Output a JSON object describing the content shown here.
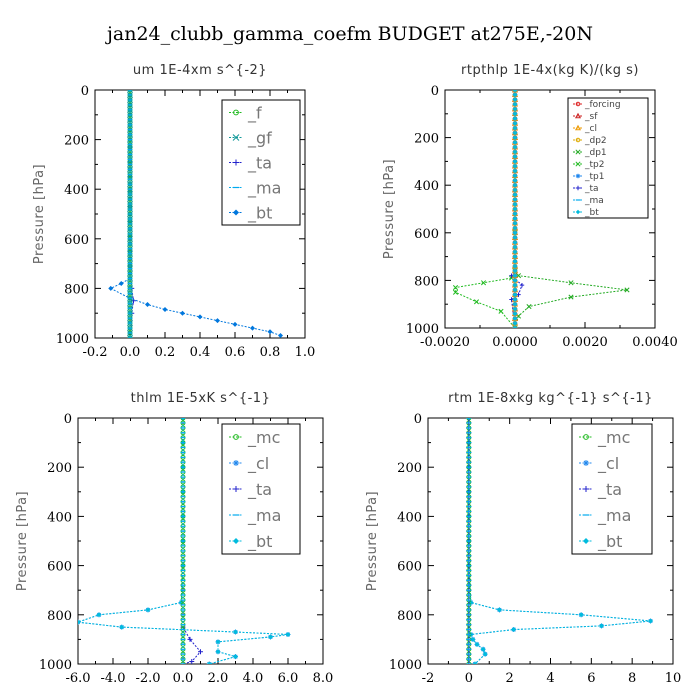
{
  "title": "jan24_clubb_gamma_coefm  BUDGET at275E,-20N",
  "chart_data": [
    {
      "type": "line",
      "title": "um   1E-4xm s^{-2}",
      "ylabel": "Pressure [hPa]",
      "xlim": [
        -0.2,
        1.0
      ],
      "ylim": [
        1000,
        0
      ],
      "xticks": [
        "-0.2",
        "0.0",
        "0.2",
        "0.4",
        "0.6",
        "0.8",
        "1.0"
      ],
      "yticks": [
        "0",
        "200",
        "400",
        "600",
        "800",
        "1000"
      ],
      "legend_style": "large",
      "series": [
        {
          "name": "_f",
          "color": "#22bb22",
          "marker": "circle",
          "x": [
            0,
            0
          ],
          "y": [
            0,
            1000
          ]
        },
        {
          "name": "_gf",
          "color": "#119999",
          "marker": "cross",
          "x": [
            0,
            0
          ],
          "y": [
            0,
            1000
          ]
        },
        {
          "name": "_ta",
          "color": "#2222cc",
          "marker": "plus",
          "x": [
            0,
            0,
            0,
            0,
            0,
            0,
            0,
            0,
            0,
            0.01,
            0.02,
            0.01,
            0.0
          ],
          "y": [
            0,
            100,
            200,
            300,
            400,
            500,
            600,
            700,
            760,
            800,
            850,
            900,
            1000
          ]
        },
        {
          "name": "_ma",
          "color": "#00aaee",
          "marker": "dash",
          "x": [
            0,
            0
          ],
          "y": [
            0,
            1000
          ]
        },
        {
          "name": "_bt",
          "color": "#0077dd",
          "marker": "diamond",
          "x": [
            0,
            0,
            0,
            0,
            0,
            0,
            0,
            0,
            0,
            0,
            0,
            0,
            0,
            0,
            0,
            0,
            0,
            0,
            0,
            0,
            0,
            0,
            0,
            0,
            0,
            0,
            0,
            0,
            0,
            0,
            -0.05,
            -0.11,
            0.0,
            0.1,
            0.2,
            0.3,
            0.4,
            0.5,
            0.6,
            0.7,
            0.8,
            0.86
          ],
          "y": [
            0,
            20,
            40,
            60,
            80,
            100,
            120,
            140,
            160,
            180,
            200,
            230,
            260,
            290,
            320,
            350,
            380,
            410,
            440,
            470,
            500,
            530,
            560,
            590,
            620,
            650,
            680,
            710,
            740,
            760,
            780,
            800,
            840,
            865,
            885,
            900,
            915,
            930,
            945,
            960,
            975,
            990
          ]
        }
      ]
    },
    {
      "type": "line",
      "title": "rtpthlp   1E-4x(kg K)/(kg s)",
      "ylabel": "Pressure [hPa]",
      "xlim": [
        -0.002,
        0.004
      ],
      "ylim": [
        1000,
        0
      ],
      "xticks": [
        "-0.0020",
        "0.0000",
        "0.0020",
        "0.0040"
      ],
      "yticks": [
        "0",
        "200",
        "400",
        "600",
        "800",
        "1000"
      ],
      "legend_style": "small",
      "series": [
        {
          "name": "_forcing",
          "color": "#dd2222",
          "marker": "circle",
          "x": [
            0,
            0
          ],
          "y": [
            0,
            1000
          ]
        },
        {
          "name": "_sf",
          "color": "#cc2222",
          "marker": "tri",
          "x": [
            0,
            0
          ],
          "y": [
            0,
            1000
          ]
        },
        {
          "name": "_cl",
          "color": "#ee9900",
          "marker": "tri",
          "x": [
            0,
            0
          ],
          "y": [
            0,
            1000
          ]
        },
        {
          "name": "_dp2",
          "color": "#ddaa00",
          "marker": "circle",
          "x": [
            0,
            0
          ],
          "y": [
            0,
            1000
          ]
        },
        {
          "name": "_dp1",
          "color": "#22aa22",
          "marker": "cross",
          "x": [
            0,
            0,
            0,
            0.0001,
            0.0016,
            0.0032,
            0.0016,
            0.0004,
            0.0001,
            0
          ],
          "y": [
            0,
            600,
            760,
            780,
            810,
            840,
            870,
            910,
            950,
            1000
          ]
        },
        {
          "name": "_tp2",
          "color": "#22bb22",
          "marker": "cross",
          "x": [
            0,
            0,
            0,
            -0.0001,
            -0.0009,
            -0.0017,
            -0.0017,
            -0.0011,
            -0.0004,
            0
          ],
          "y": [
            0,
            600,
            760,
            790,
            810,
            830,
            850,
            890,
            930,
            1000
          ]
        },
        {
          "name": "_tp1",
          "color": "#2288ee",
          "marker": "star",
          "x": [
            0,
            0
          ],
          "y": [
            0,
            1000
          ]
        },
        {
          "name": "_ta",
          "color": "#2222cc",
          "marker": "plus",
          "x": [
            0,
            0,
            -0.0001,
            0.0002,
            0.0001,
            -0.0001,
            0
          ],
          "y": [
            0,
            760,
            780,
            820,
            860,
            880,
            1000
          ]
        },
        {
          "name": "_ma",
          "color": "#00aaee",
          "marker": "dash",
          "x": [
            0,
            0
          ],
          "y": [
            0,
            1000
          ]
        },
        {
          "name": "_bt",
          "color": "#00bbdd",
          "marker": "diamond",
          "x": [
            0,
            0
          ],
          "y": [
            0,
            1000
          ]
        }
      ]
    },
    {
      "type": "line",
      "title": "thlm   1E-5xK s^{-1}",
      "ylabel": "Pressure [hPa]",
      "xlim": [
        -6.0,
        8.0
      ],
      "ylim": [
        1000,
        0
      ],
      "xticks": [
        "-6.0",
        "-4.0",
        "-2.0",
        "0.0",
        "2.0",
        "4.0",
        "6.0",
        "8.0"
      ],
      "yticks": [
        "0",
        "200",
        "400",
        "600",
        "800",
        "1000"
      ],
      "legend_style": "large",
      "series": [
        {
          "name": "_mc",
          "color": "#22bb22",
          "marker": "circle",
          "x": [
            0,
            0
          ],
          "y": [
            0,
            1000
          ]
        },
        {
          "name": "_cl",
          "color": "#2288ee",
          "marker": "star",
          "x": [
            0,
            0,
            0,
            0,
            0,
            0,
            0,
            -0.1,
            -2.0,
            -4.8,
            -6.0,
            -3.5,
            3.0,
            6.0,
            5.0,
            2.0,
            2.0,
            3.0,
            1.5
          ],
          "y": [
            0,
            100,
            200,
            300,
            400,
            500,
            600,
            750,
            780,
            800,
            830,
            850,
            870,
            880,
            890,
            910,
            950,
            970,
            1000
          ]
        },
        {
          "name": "_ta",
          "color": "#2222cc",
          "marker": "plus",
          "x": [
            0,
            0,
            0,
            0,
            0.4,
            1.0,
            0.5,
            0
          ],
          "y": [
            0,
            700,
            800,
            850,
            900,
            950,
            990,
            1000
          ]
        },
        {
          "name": "_ma",
          "color": "#00aaee",
          "marker": "dash",
          "x": [
            0,
            0
          ],
          "y": [
            0,
            1000
          ]
        },
        {
          "name": "_bt",
          "color": "#00bbdd",
          "marker": "diamond",
          "x": [
            0,
            0,
            0,
            0,
            0,
            0,
            0,
            -0.1,
            -2.0,
            -4.8,
            -6.0,
            -3.5,
            3.0,
            6.0,
            5.0,
            2.0,
            2.0,
            3.0,
            1.5
          ],
          "y": [
            0,
            100,
            200,
            300,
            400,
            500,
            600,
            750,
            780,
            800,
            830,
            850,
            870,
            880,
            890,
            910,
            950,
            970,
            1000
          ]
        }
      ]
    },
    {
      "type": "line",
      "title": "rtm   1E-8xkg kg^{-1} s^{-1}",
      "ylabel": "Pressure [hPa]",
      "xlim": [
        -2,
        10
      ],
      "ylim": [
        1000,
        0
      ],
      "xticks": [
        "-2",
        "0",
        "2",
        "4",
        "6",
        "8",
        "10"
      ],
      "yticks": [
        "0",
        "200",
        "400",
        "600",
        "800",
        "1000"
      ],
      "legend_style": "large",
      "series": [
        {
          "name": "_mc",
          "color": "#22bb22",
          "marker": "circle",
          "x": [
            0,
            0
          ],
          "y": [
            0,
            1000
          ]
        },
        {
          "name": "_cl",
          "color": "#2288ee",
          "marker": "star",
          "x": [
            0,
            0,
            0,
            0,
            0,
            0,
            0,
            0.1,
            1.5,
            5.5,
            8.9,
            6.5,
            2.2,
            0.1,
            0.2,
            0.4,
            0.7,
            0.8,
            0.3
          ],
          "y": [
            0,
            100,
            200,
            300,
            400,
            500,
            600,
            750,
            780,
            800,
            825,
            845,
            860,
            880,
            900,
            920,
            940,
            960,
            1000
          ]
        },
        {
          "name": "_ta",
          "color": "#2222cc",
          "marker": "plus",
          "x": [
            0,
            0
          ],
          "y": [
            0,
            1000
          ]
        },
        {
          "name": "_ma",
          "color": "#00aaee",
          "marker": "dash",
          "x": [
            0,
            0
          ],
          "y": [
            0,
            1000
          ]
        },
        {
          "name": "_bt",
          "color": "#00bbdd",
          "marker": "diamond",
          "x": [
            0,
            0,
            0,
            0,
            0,
            0,
            0,
            0.1,
            1.5,
            5.5,
            8.9,
            6.5,
            2.2,
            0.1,
            0.2,
            0.4,
            0.7,
            0.8,
            0.3
          ],
          "y": [
            0,
            100,
            200,
            300,
            400,
            500,
            600,
            750,
            780,
            800,
            825,
            845,
            860,
            880,
            900,
            920,
            940,
            960,
            1000
          ]
        }
      ]
    }
  ]
}
